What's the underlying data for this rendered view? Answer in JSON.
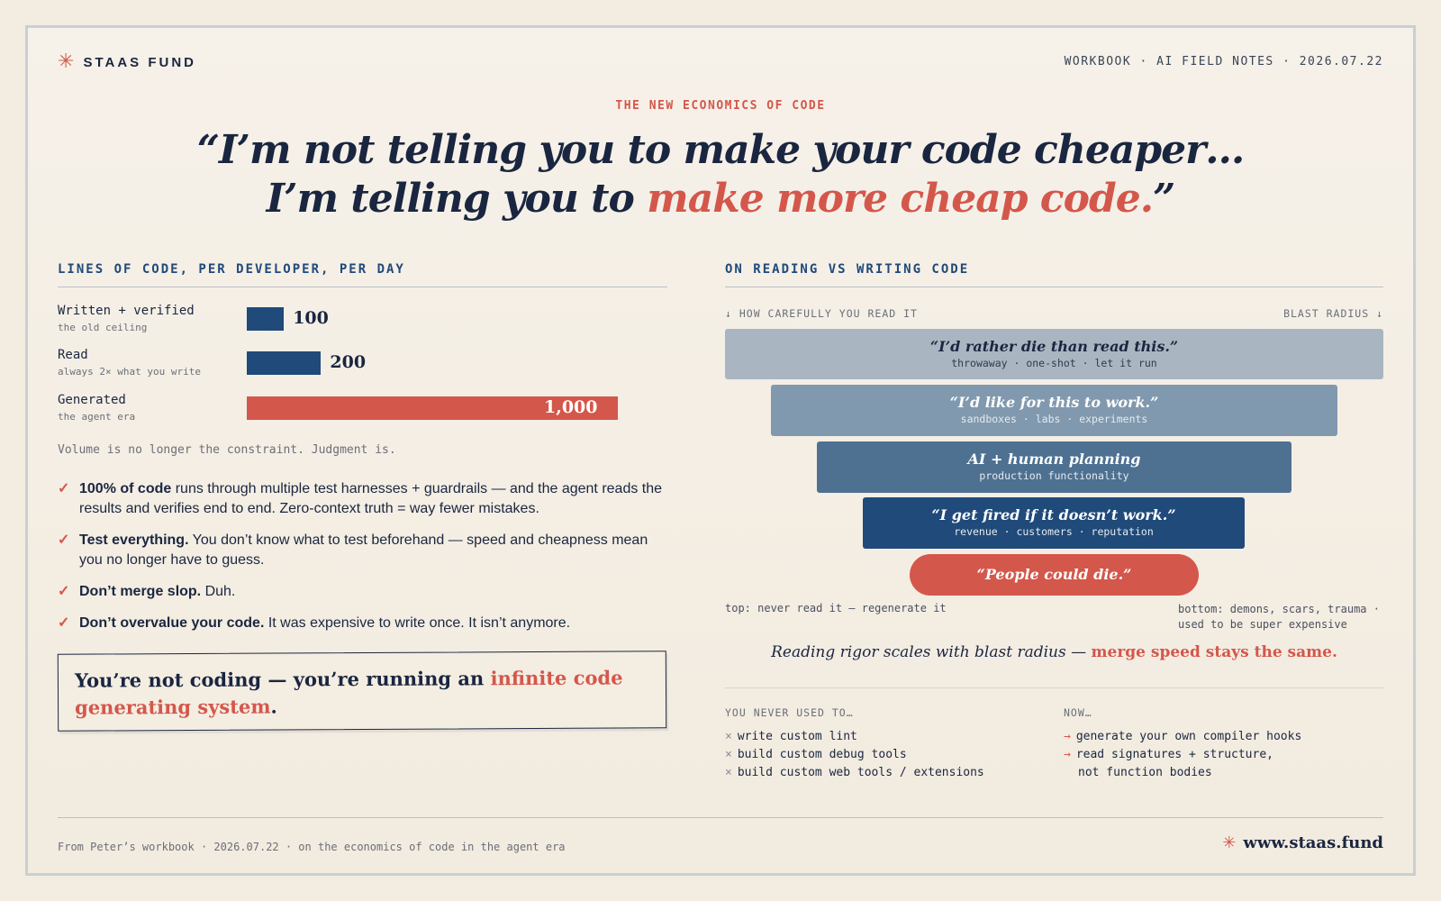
{
  "header": {
    "brand": "STAAS FUND",
    "meta": "WORKBOOK · AI FIELD NOTES · 2026.07.22"
  },
  "hero": {
    "eyebrow": "THE NEW ECONOMICS OF CODE",
    "line1": "“I’m not telling you to make your code cheaper…",
    "line2_plain": "I’m telling you to ",
    "line2_accent": "make more cheap code.",
    "line2_close": "”"
  },
  "left": {
    "section_title": "LINES OF CODE, PER DEVELOPER, PER DAY",
    "chart_data": {
      "type": "bar",
      "categories": [
        "Written + verified",
        "Read",
        "Generated"
      ],
      "subtitles": [
        "the old ceiling",
        "always 2× what you write",
        "the agent era"
      ],
      "values": [
        100,
        200,
        1000
      ],
      "value_labels": [
        "100",
        "200",
        "1,000"
      ],
      "colors": [
        "#1f4a7a",
        "#1f4a7a",
        "#d4574b"
      ]
    },
    "note": "Volume is no longer the constraint. Judgment is.",
    "checks": [
      {
        "bold": "100% of code",
        "text": " runs through multiple test harnesses + guardrails — and the agent reads the results and verifies end to end. Zero-context truth = way fewer mistakes."
      },
      {
        "bold": "Test everything.",
        "text": " You don’t know what to test beforehand — speed and cheapness mean you no longer have to guess."
      },
      {
        "bold": "Don’t merge slop.",
        "text": " Duh."
      },
      {
        "bold": "Don’t overvalue your code.",
        "text": " It was expensive to write once. It isn’t anymore."
      }
    ],
    "callout": {
      "plain": "You’re not coding — you’re running an ",
      "accent": "infinite code generating system",
      "end": "."
    }
  },
  "right": {
    "section_title": "ON READING VS WRITING CODE",
    "axis_left": "↓ HOW CAREFULLY YOU READ IT",
    "axis_right": "BLAST RADIUS ↓",
    "tiers": [
      {
        "quote": "“I’d rather die than read this.”",
        "sub": "throwaway · one-shot · let it run"
      },
      {
        "quote": "“I’d like for this to work.”",
        "sub": "sandboxes · labs · experiments"
      },
      {
        "quote": "AI + human planning",
        "sub": "production functionality"
      },
      {
        "quote": "“I get fired if it doesn’t work.”",
        "sub": "revenue · customers · reputation"
      },
      {
        "quote": "“People could die.”",
        "sub": ""
      }
    ],
    "footnote_left": "top: never read it — regenerate it",
    "footnote_right_1": "bottom: demons, scars, trauma ·",
    "footnote_right_2": "used to be super expensive",
    "rigor_plain": "Reading rigor scales with blast radius — ",
    "rigor_accent": "merge speed stays the same.",
    "never_head": "YOU NEVER USED TO…",
    "never_items": [
      "write custom lint",
      "build custom debug tools",
      "build custom web tools / extensions"
    ],
    "now_head": "NOW…",
    "now_items": [
      "generate your own compiler hooks",
      "read signatures + structure,",
      "not function bodies"
    ]
  },
  "footer": {
    "left": "From Peter’s workbook · 2026.07.22 · on the economics of code in the agent era",
    "url": "www.staas.fund"
  },
  "colors": {
    "accent": "#d4574b",
    "navy": "#1f4a7a",
    "ink": "#1a2640",
    "paper": "#f3ece1"
  }
}
